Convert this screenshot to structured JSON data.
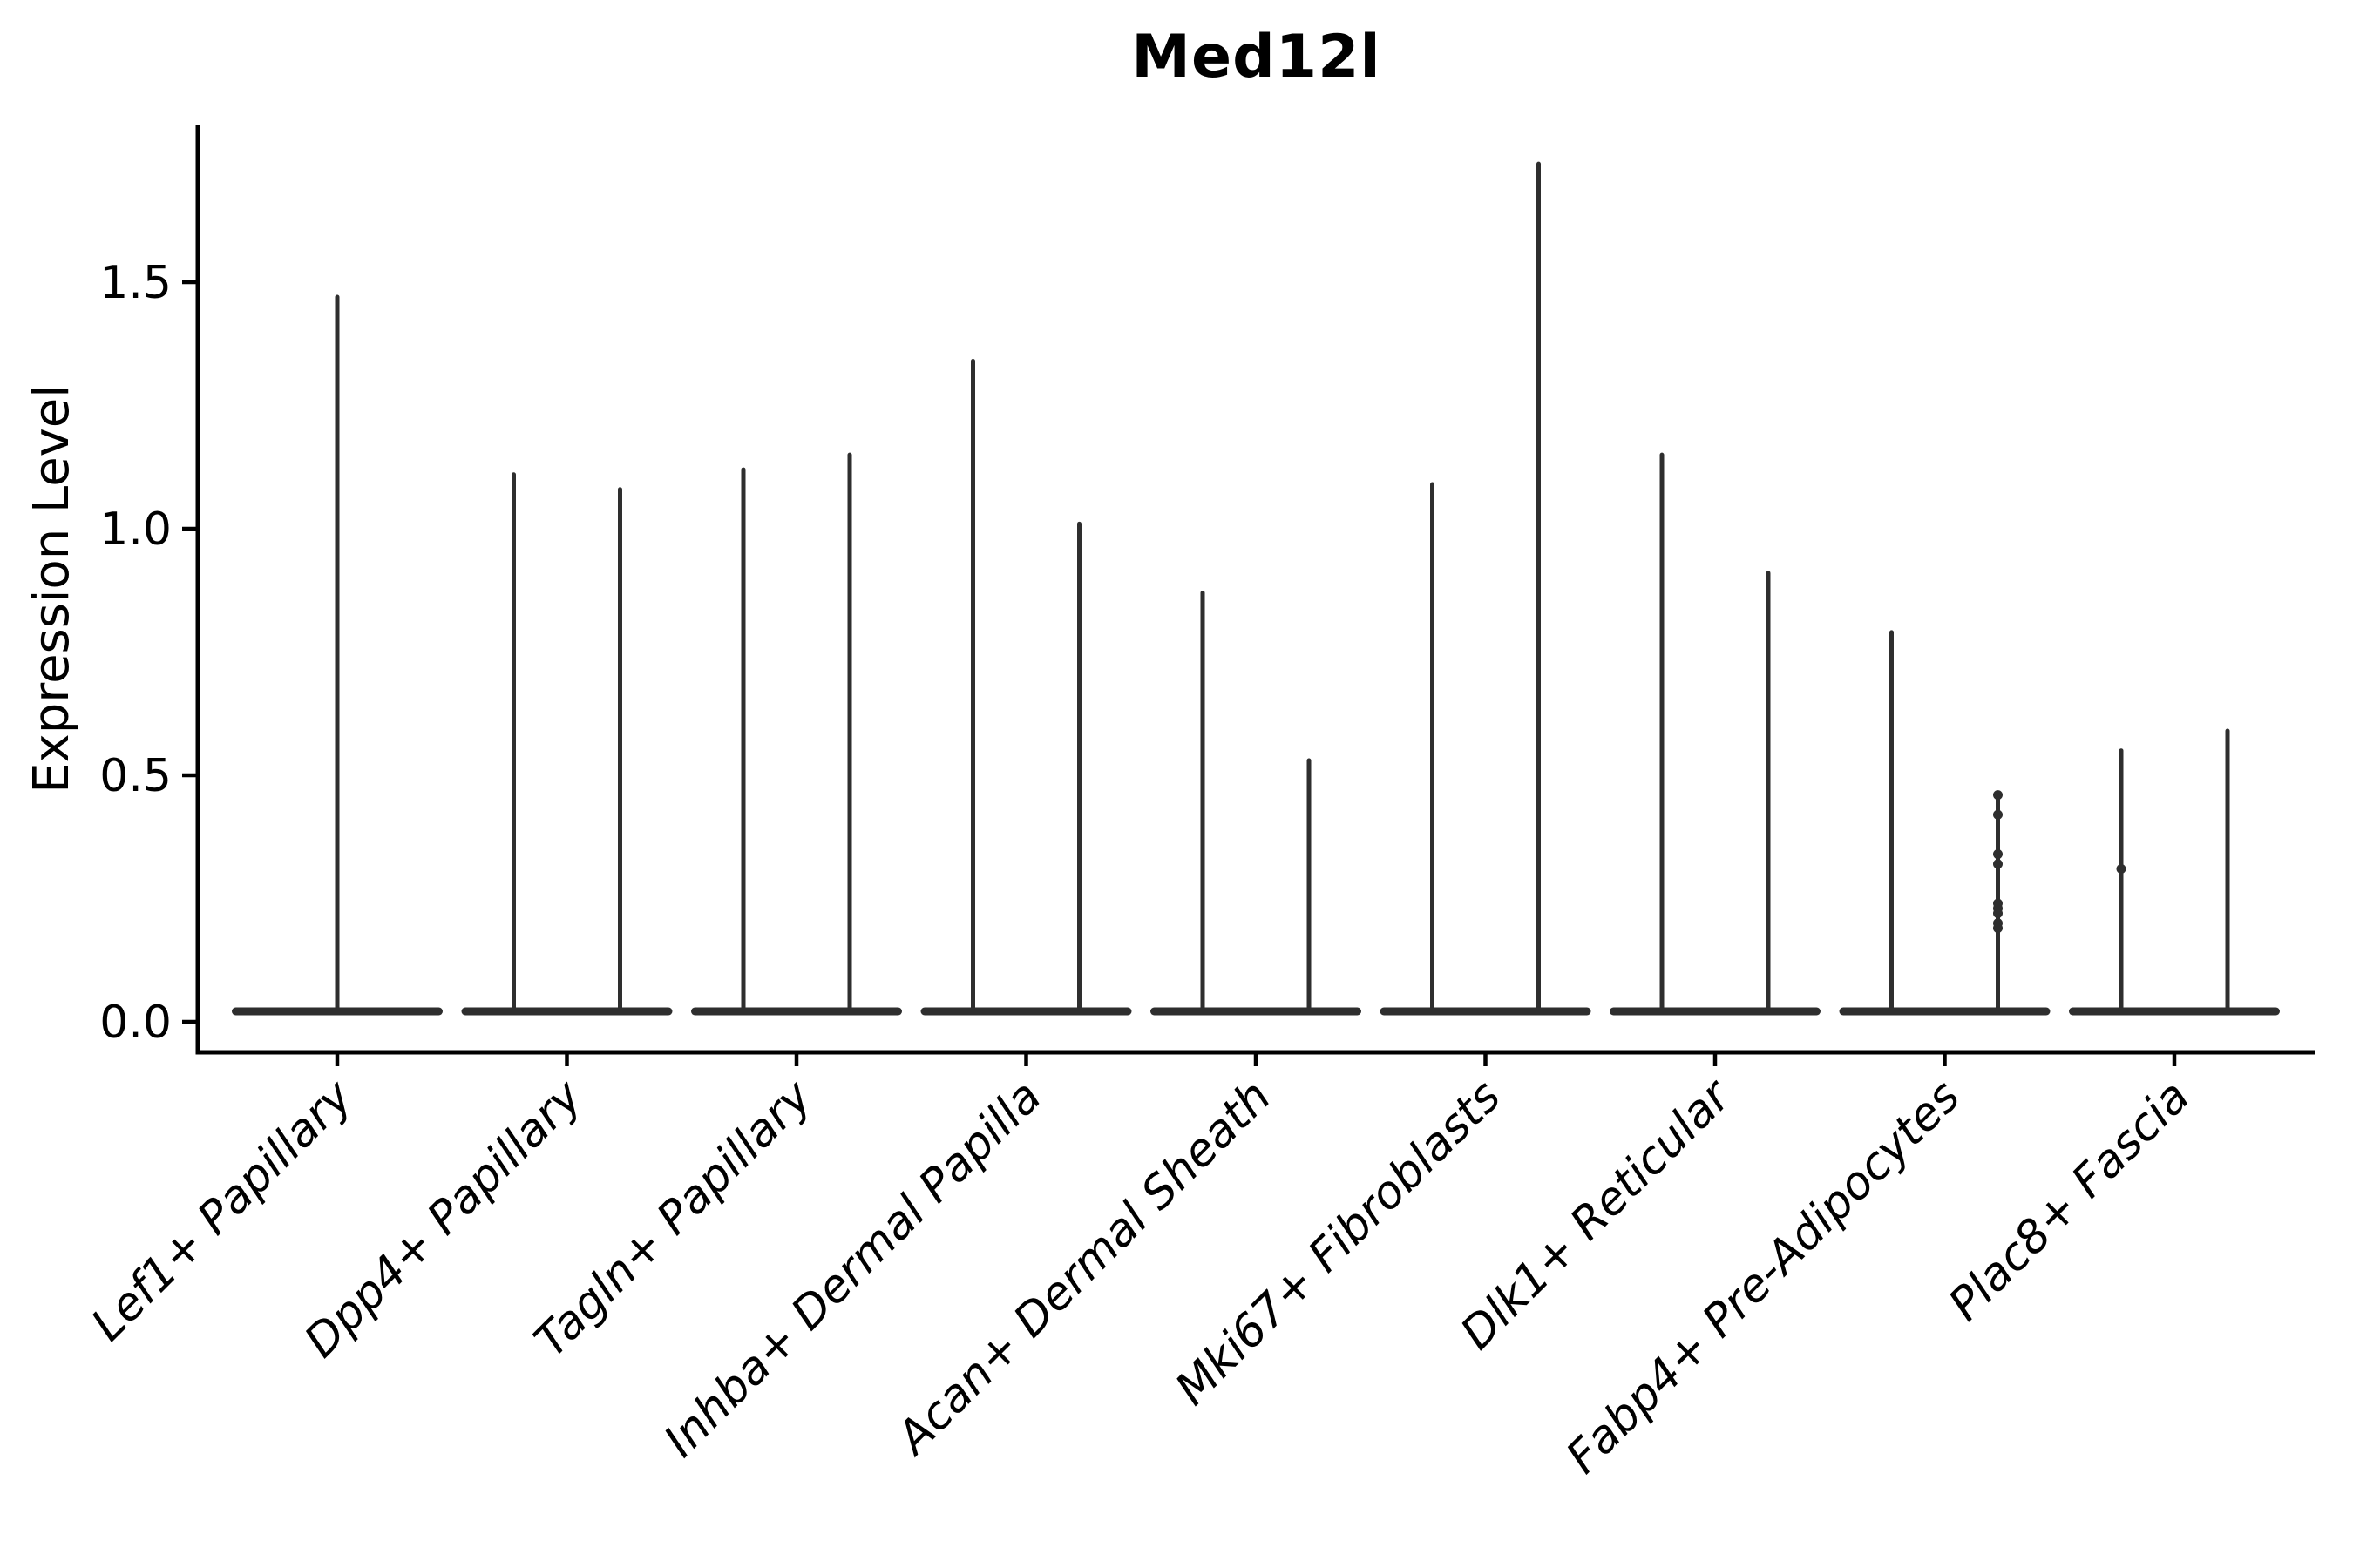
{
  "chart_data": {
    "type": "violin",
    "title": "Med12l",
    "ylabel": "Expression Level",
    "xlabel": "",
    "ytick_labels": [
      "0.0",
      "0.5",
      "1.0",
      "1.5"
    ],
    "ytick_values": [
      0.0,
      0.5,
      1.0,
      1.5
    ],
    "ylim": [
      -0.06,
      1.82
    ],
    "grid": false,
    "legend": "none",
    "style": "needle-violins: wide flat base at 0 (most cells zero expression) with thin vertical spike(s) up to the max expressing cell; two grouped violins per category except the first which has one centered violin",
    "categories": [
      "Lef1+ Papillary",
      "Dpp4+ Papillary",
      "Tagln+ Papillary",
      "Inhba+ Dermal Papilla",
      "Acan+ Dermal Sheath",
      "Mki67+ Fibroblasts",
      "Dlk1+ Reticular",
      "Fabp4+ Pre-Adipocytes",
      "Plac8+ Fascia"
    ],
    "violins": [
      {
        "category": "Lef1+ Papillary",
        "needles": [
          {
            "pos": "center",
            "max": 1.47
          }
        ]
      },
      {
        "category": "Dpp4+ Papillary",
        "needles": [
          {
            "pos": "left",
            "max": 1.11
          },
          {
            "pos": "right",
            "max": 1.08
          }
        ]
      },
      {
        "category": "Tagln+ Papillary",
        "needles": [
          {
            "pos": "left",
            "max": 1.12
          },
          {
            "pos": "right",
            "max": 1.15
          }
        ]
      },
      {
        "category": "Inhba+ Dermal Papilla",
        "needles": [
          {
            "pos": "left",
            "max": 1.34
          },
          {
            "pos": "right",
            "max": 1.01
          }
        ]
      },
      {
        "category": "Acan+ Dermal Sheath",
        "needles": [
          {
            "pos": "left",
            "max": 0.87
          },
          {
            "pos": "right",
            "max": 0.53
          }
        ]
      },
      {
        "category": "Mki67+ Fibroblasts",
        "needles": [
          {
            "pos": "left",
            "max": 1.09
          },
          {
            "pos": "right",
            "max": 1.74
          }
        ]
      },
      {
        "category": "Dlk1+ Reticular",
        "needles": [
          {
            "pos": "left",
            "max": 1.15
          },
          {
            "pos": "right",
            "max": 0.91
          }
        ]
      },
      {
        "category": "Fabp4+ Pre-Adipocytes",
        "needles": [
          {
            "pos": "left",
            "max": 0.79
          },
          {
            "pos": "right",
            "max": 0.46,
            "points": [
              0.46,
              0.42,
              0.34,
              0.32,
              0.24,
              0.23,
              0.22,
              0.2,
              0.19
            ]
          }
        ]
      },
      {
        "category": "Plac8+ Fascia",
        "needles": [
          {
            "pos": "left",
            "max": 0.55,
            "points": [
              0.31
            ]
          },
          {
            "pos": "right",
            "max": 0.59
          }
        ]
      }
    ],
    "colors": {
      "violin": "#2e2e2e",
      "axis": "#000000",
      "text": "#000000",
      "background": "#ffffff"
    }
  }
}
